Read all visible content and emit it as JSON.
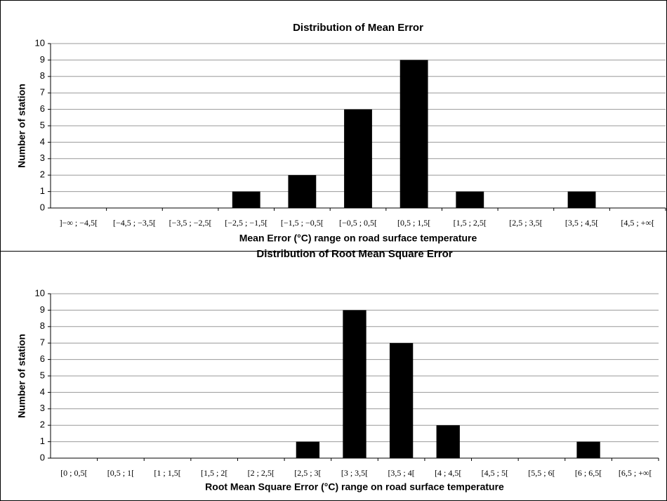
{
  "chart_data": [
    {
      "type": "bar",
      "title": "Distribution of  Mean Error",
      "x_label": "Mean Error (°C) range on road surface temperature",
      "y_label": "Number of station",
      "categories": [
        "]−∞ ; −4,5[",
        "[−4,5 ; −3,5[",
        "[−3,5 ; −2,5[",
        "[−2,5 ; −1,5[",
        "[−1,5 ; −0,5[",
        "[−0,5 ; 0,5[",
        "[0,5 ; 1,5[",
        "[1,5 ; 2,5[",
        "[2,5 ; 3,5[",
        "[3,5 ; 4,5[",
        "[4,5 ; +∞["
      ],
      "values": [
        0,
        0,
        0,
        1,
        2,
        6,
        9,
        1,
        0,
        1,
        0
      ],
      "color": "#000000",
      "ylim": [
        0,
        10
      ],
      "yticks": [
        0,
        1,
        2,
        3,
        4,
        5,
        6,
        7,
        8,
        9,
        10
      ],
      "grid": true
    },
    {
      "type": "bar",
      "title": "Distribution of  Root Mean Square Error",
      "x_label": "Root Mean Square Error (°C) range on road surface temperature",
      "y_label": "Number of station",
      "categories": [
        "[0 ; 0,5[",
        "[0,5 ; 1[",
        "[1 ; 1,5[",
        "[1,5 ; 2[",
        "[2 ; 2,5[",
        "[2,5 ; 3[",
        "[3 ; 3,5[",
        "[3,5 ; 4[",
        "[4 ; 4,5[",
        "[4,5 ; 5[",
        "[5,5 ; 6[",
        "[6 ; 6,5[",
        "[6,5 ; +∞["
      ],
      "values": [
        0,
        0,
        0,
        0,
        0,
        1,
        9,
        7,
        2,
        0,
        0,
        1,
        0
      ],
      "color": "#000000",
      "ylim": [
        0,
        10
      ],
      "yticks": [
        0,
        1,
        2,
        3,
        4,
        5,
        6,
        7,
        8,
        9,
        10
      ],
      "grid": true
    }
  ]
}
